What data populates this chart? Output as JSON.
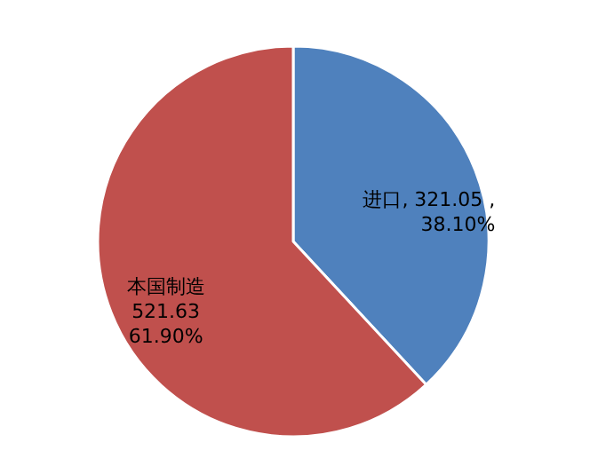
{
  "chart_data": {
    "type": "pie",
    "categories": [
      "进口",
      "本国制造"
    ],
    "values": [
      321.05,
      521.63
    ],
    "colors": [
      "#4f81bd",
      "#c0504d"
    ],
    "value_labels": [
      "321.05 , 38.10%",
      "521.63 61.90%"
    ]
  }
}
